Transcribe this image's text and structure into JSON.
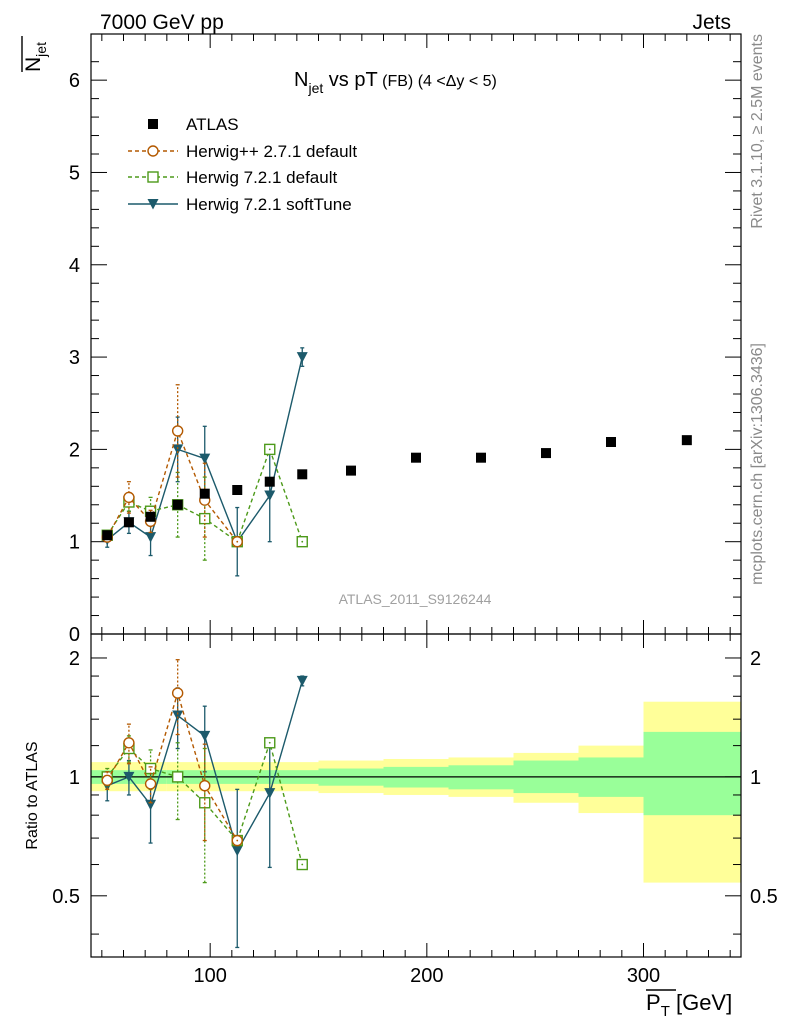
{
  "header": {
    "left": "7000 GeV pp",
    "right": "Jets"
  },
  "side_labels": {
    "rivet": "Rivet 3.1.10, ≥ 2.5M events",
    "mcplots": "mcplots.cern.ch [arXiv:1306.3436]"
  },
  "watermark": "ATLAS_2011_S9126244",
  "colors": {
    "atlas": "#000000",
    "herwigpp": "#b35900",
    "herwig721": "#4d9a1a",
    "softtune": "#1c5a6b",
    "band_yellow": "#ffff99",
    "band_green": "#99ff99"
  },
  "chart_data": [
    {
      "type": "scatter",
      "title": "N_jet vs pT (FB) (4 < Δy < 5)",
      "title_parts": {
        "main": "N",
        "sub": "jet",
        "rest": " vs pT",
        "small": " (FB) (4 <Δy < 5)"
      },
      "ylabel": "N_jet",
      "ylabel_parts": {
        "main": "N",
        "sub": "jet"
      },
      "xlim": [
        45,
        345
      ],
      "ylim": [
        0,
        6.5
      ],
      "yticks": [
        0,
        1,
        2,
        3,
        4,
        5,
        6
      ],
      "ytick_labels": [
        "0",
        "1",
        "2",
        "3",
        "4",
        "5",
        "6"
      ],
      "legend": [
        "ATLAS",
        "Herwig++ 2.7.1 default",
        "Herwig 7.2.1 default",
        "Herwig 7.2.1 softTune"
      ],
      "series": [
        {
          "name": "ATLAS",
          "x": [
            52.5,
            62.5,
            72.5,
            85,
            97.5,
            112.5,
            127.5,
            142.5,
            165,
            195,
            225,
            255,
            285,
            320
          ],
          "y": [
            1.07,
            1.21,
            1.27,
            1.4,
            1.52,
            1.56,
            1.65,
            1.73,
            1.77,
            1.91,
            1.91,
            1.96,
            2.08,
            2.1
          ],
          "err": [
            0.02,
            0.02,
            0.02,
            0.02,
            0.03,
            0.03,
            0.03,
            0.03,
            0.03,
            0.03,
            0.03,
            0.03,
            0.04,
            0.04
          ]
        },
        {
          "name": "Herwig++ 2.7.1 default",
          "x": [
            52.5,
            62.5,
            72.5,
            85,
            97.5,
            112.5
          ],
          "y": [
            1.05,
            1.48,
            1.22,
            2.2,
            1.45,
            1.0
          ],
          "err": [
            0.05,
            0.17,
            0.12,
            0.5,
            0.4,
            0.0
          ]
        },
        {
          "name": "Herwig 7.2.1 default",
          "x": [
            52.5,
            62.5,
            72.5,
            85,
            97.5,
            112.5,
            127.5,
            142.5
          ],
          "y": [
            1.07,
            1.43,
            1.33,
            1.4,
            1.25,
            1.0,
            2.0,
            1.0
          ],
          "err": [
            0.05,
            0.1,
            0.15,
            0.35,
            0.45,
            0.0,
            0.0,
            0.0
          ]
        },
        {
          "name": "Herwig 7.2.1 softTune",
          "x": [
            52.5,
            62.5,
            72.5,
            85,
            97.5,
            112.5,
            127.5,
            142.5
          ],
          "y": [
            1.02,
            1.21,
            1.05,
            2.0,
            1.9,
            1.0,
            1.5,
            3.0
          ],
          "err": [
            0.08,
            0.12,
            0.2,
            0.35,
            0.35,
            0.37,
            0.5,
            0.1
          ]
        }
      ]
    },
    {
      "type": "scatter",
      "title": "Ratio to ATLAS",
      "ylabel": "Ratio to ATLAS",
      "xlabel": "P_T [GeV]",
      "xlabel_parts": {
        "main": "P",
        "sub": "T",
        "rest": " [GeV]"
      },
      "xlim": [
        45,
        345
      ],
      "ylim": [
        0.35,
        2.3
      ],
      "xticks": [
        100,
        200,
        300
      ],
      "xtick_labels": [
        "100",
        "200",
        "300"
      ],
      "yticks": [
        0.5,
        1,
        2
      ],
      "ytick_labels": [
        "0.5",
        "1",
        "2"
      ],
      "bands": {
        "edges": [
          45,
          60,
          70,
          80,
          90,
          105,
          120,
          135,
          150,
          180,
          210,
          240,
          270,
          300,
          345
        ],
        "yellow_lo": [
          0.92,
          0.92,
          0.92,
          0.92,
          0.92,
          0.92,
          0.92,
          0.92,
          0.91,
          0.9,
          0.89,
          0.86,
          0.81,
          0.54
        ],
        "yellow_hi": [
          1.09,
          1.09,
          1.09,
          1.09,
          1.09,
          1.09,
          1.09,
          1.09,
          1.1,
          1.11,
          1.12,
          1.15,
          1.2,
          1.55
        ],
        "green_lo": [
          0.96,
          0.96,
          0.96,
          0.96,
          0.96,
          0.96,
          0.96,
          0.96,
          0.95,
          0.94,
          0.93,
          0.91,
          0.89,
          0.8
        ],
        "green_hi": [
          1.04,
          1.04,
          1.04,
          1.04,
          1.04,
          1.04,
          1.04,
          1.04,
          1.05,
          1.06,
          1.07,
          1.1,
          1.12,
          1.3
        ]
      },
      "series": [
        {
          "name": "Herwig++ 2.7.1 default",
          "x": [
            52.5,
            62.5,
            72.5,
            85,
            97.5,
            112.5
          ],
          "y": [
            0.98,
            1.22,
            0.96,
            1.63,
            0.95,
            0.69
          ],
          "err": [
            0.05,
            0.14,
            0.1,
            0.35,
            0.26,
            0.0
          ]
        },
        {
          "name": "Herwig 7.2.1 default",
          "x": [
            52.5,
            62.5,
            72.5,
            85,
            97.5,
            112.5,
            127.5,
            142.5
          ],
          "y": [
            1.0,
            1.18,
            1.05,
            1.0,
            0.86,
            0.69,
            1.22,
            0.6
          ],
          "err": [
            0.05,
            0.09,
            0.12,
            0.22,
            0.32,
            0.0,
            0.0,
            0.0
          ]
        },
        {
          "name": "Herwig 7.2.1 softTune",
          "x": [
            52.5,
            62.5,
            72.5,
            85,
            97.5,
            112.5,
            127.5,
            142.5
          ],
          "y": [
            0.95,
            1.0,
            0.85,
            1.43,
            1.27,
            0.65,
            0.91,
            1.75
          ],
          "err": [
            0.08,
            0.1,
            0.17,
            0.25,
            0.24,
            0.28,
            0.32,
            0.05
          ]
        }
      ]
    }
  ]
}
